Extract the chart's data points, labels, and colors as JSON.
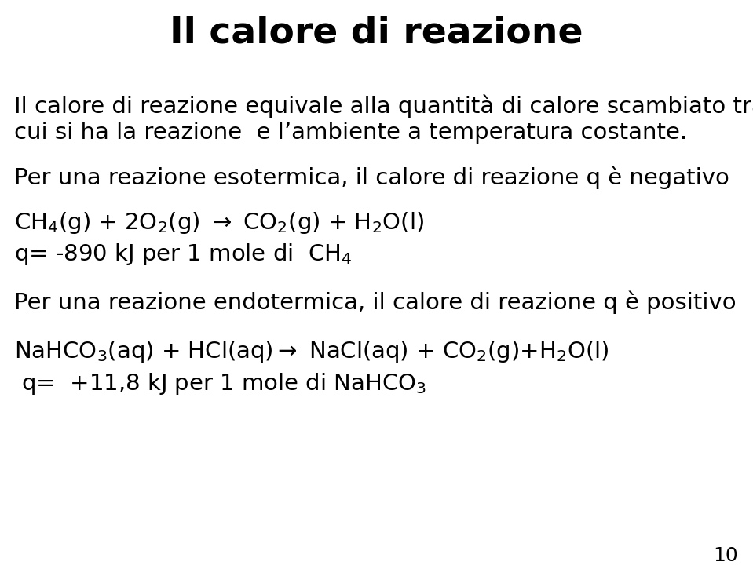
{
  "title": "Il calore di reazione",
  "background_color": "#ffffff",
  "text_color": "#000000",
  "title_fontsize": 34,
  "body_fontsize": 21,
  "page_number": "10",
  "page_num_fontsize": 18,
  "line1": "Il calore di reazione equivale alla quantità di calore scambiato tra il sistema in",
  "line2": "cui si ha la reazione  e l’ambiente a temperatura costante.",
  "section1_title": "Per una reazione esotermica, il calore di reazione q è negativo",
  "eq1": "CH$_4$(g) + 2O$_2$(g) $\\rightarrow$ CO$_2$(g) + H$_2$O(l)",
  "q1": "q= -890 kJ per 1 mole di  CH$_4$",
  "section2_title": "Per una reazione endotermica, il calore di reazione q è positivo",
  "eq2": "NaHCO$_3$(aq) + HCl(aq)$\\rightarrow$ NaCl(aq) + CO$_2$(g)+H$_2$O(l)",
  "q2": " q=  +11,8 kJ per 1 mole di NaHCO$_3$"
}
